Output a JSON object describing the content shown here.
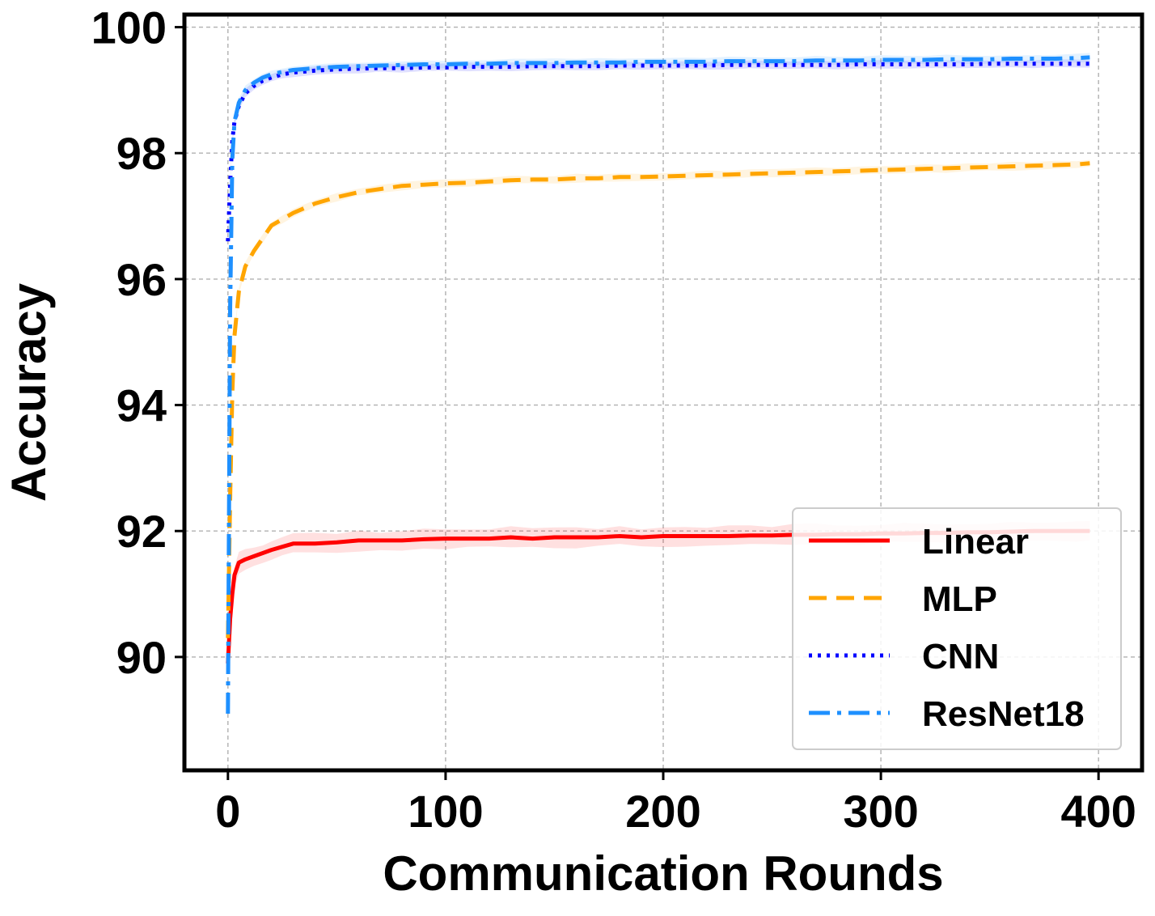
{
  "chart_data": {
    "type": "line",
    "title": "",
    "xlabel": "Communication Rounds",
    "ylabel": "Accuracy",
    "xlim": [
      -20,
      420
    ],
    "ylim": [
      88.2,
      100.2
    ],
    "xticks": [
      0,
      100,
      200,
      300,
      400
    ],
    "yticks": [
      90,
      92,
      94,
      96,
      98,
      100
    ],
    "grid": true,
    "legend_position": "lower-right",
    "shaded_variance_bands": true,
    "series": [
      {
        "name": "Linear",
        "color": "#ff0000",
        "style": "solid",
        "x": [
          0,
          1,
          2,
          3,
          5,
          8,
          12,
          16,
          20,
          25,
          30,
          40,
          50,
          60,
          70,
          80,
          90,
          100,
          110,
          120,
          130,
          140,
          150,
          160,
          170,
          180,
          190,
          200,
          210,
          220,
          230,
          240,
          250,
          260,
          270,
          280,
          290,
          300,
          310,
          320,
          330,
          340,
          350,
          360,
          370,
          380,
          390,
          396
        ],
        "y": [
          89.9,
          90.6,
          91.0,
          91.3,
          91.5,
          91.55,
          91.6,
          91.65,
          91.7,
          91.75,
          91.8,
          91.8,
          91.82,
          91.85,
          91.85,
          91.85,
          91.87,
          91.88,
          91.88,
          91.88,
          91.9,
          91.88,
          91.9,
          91.9,
          91.9,
          91.92,
          91.9,
          91.92,
          91.92,
          91.92,
          91.92,
          91.93,
          91.93,
          91.94,
          91.94,
          91.95,
          91.95,
          91.96,
          91.96,
          91.97,
          91.97,
          91.98,
          91.98,
          91.99,
          92.0,
          92.0,
          92.0,
          92.0
        ]
      },
      {
        "name": "MLP",
        "color": "#ffa500",
        "style": "dashed",
        "x": [
          0,
          1,
          2,
          3,
          5,
          8,
          12,
          16,
          20,
          25,
          30,
          40,
          50,
          60,
          70,
          80,
          90,
          100,
          110,
          120,
          130,
          140,
          150,
          160,
          170,
          180,
          190,
          200,
          210,
          220,
          230,
          240,
          250,
          260,
          270,
          280,
          290,
          300,
          310,
          320,
          330,
          340,
          350,
          360,
          370,
          380,
          390,
          396
        ],
        "y": [
          90.3,
          92.5,
          94.2,
          95.1,
          95.8,
          96.2,
          96.45,
          96.65,
          96.85,
          96.95,
          97.05,
          97.2,
          97.3,
          97.38,
          97.43,
          97.48,
          97.5,
          97.52,
          97.53,
          97.55,
          97.57,
          97.58,
          97.58,
          97.6,
          97.6,
          97.62,
          97.62,
          97.63,
          97.64,
          97.65,
          97.66,
          97.67,
          97.68,
          97.69,
          97.7,
          97.71,
          97.72,
          97.73,
          97.74,
          97.75,
          97.76,
          97.77,
          97.78,
          97.79,
          97.8,
          97.81,
          97.82,
          97.84
        ]
      },
      {
        "name": "CNN",
        "color": "#0000ff",
        "style": "dotted",
        "x": [
          0,
          1,
          2,
          3,
          5,
          8,
          12,
          16,
          20,
          25,
          30,
          40,
          50,
          60,
          70,
          80,
          90,
          100,
          110,
          120,
          130,
          140,
          150,
          160,
          170,
          180,
          190,
          200,
          210,
          220,
          230,
          240,
          250,
          260,
          270,
          280,
          290,
          300,
          310,
          320,
          330,
          340,
          350,
          360,
          370,
          380,
          390,
          396
        ],
        "y": [
          96.6,
          97.5,
          98.2,
          98.5,
          98.75,
          98.95,
          99.07,
          99.15,
          99.2,
          99.25,
          99.28,
          99.31,
          99.33,
          99.34,
          99.35,
          99.35,
          99.36,
          99.36,
          99.37,
          99.37,
          99.37,
          99.38,
          99.38,
          99.38,
          99.38,
          99.39,
          99.39,
          99.39,
          99.39,
          99.39,
          99.4,
          99.4,
          99.4,
          99.4,
          99.4,
          99.4,
          99.41,
          99.41,
          99.41,
          99.41,
          99.41,
          99.41,
          99.42,
          99.42,
          99.42,
          99.42,
          99.42,
          99.42
        ]
      },
      {
        "name": "ResNet18",
        "color": "#1e90ff",
        "style": "dashdot",
        "x": [
          0,
          1,
          2,
          3,
          5,
          8,
          12,
          16,
          20,
          25,
          30,
          40,
          50,
          60,
          70,
          80,
          90,
          100,
          110,
          120,
          130,
          140,
          150,
          160,
          170,
          180,
          190,
          200,
          210,
          220,
          230,
          240,
          250,
          260,
          270,
          280,
          290,
          300,
          310,
          320,
          330,
          340,
          350,
          360,
          370,
          380,
          390,
          396
        ],
        "y": [
          89.1,
          95.5,
          97.9,
          98.5,
          98.8,
          99.0,
          99.12,
          99.2,
          99.25,
          99.29,
          99.32,
          99.35,
          99.37,
          99.38,
          99.39,
          99.4,
          99.41,
          99.41,
          99.42,
          99.42,
          99.43,
          99.43,
          99.43,
          99.44,
          99.44,
          99.44,
          99.45,
          99.45,
          99.45,
          99.45,
          99.46,
          99.46,
          99.46,
          99.46,
          99.47,
          99.47,
          99.47,
          99.48,
          99.48,
          99.48,
          99.49,
          99.49,
          99.49,
          99.5,
          99.5,
          99.5,
          99.51,
          99.52
        ]
      }
    ]
  }
}
